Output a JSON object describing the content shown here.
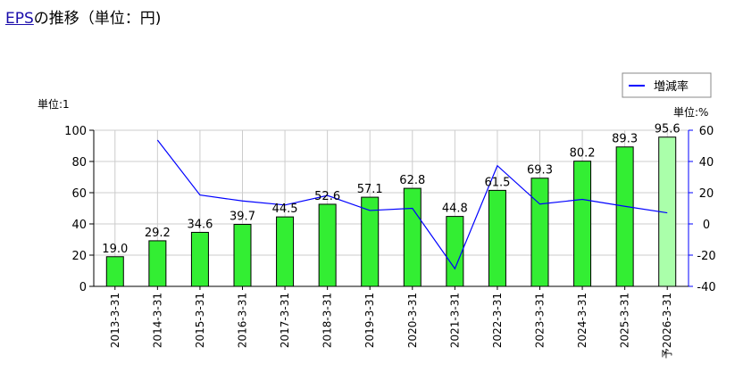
{
  "header": {
    "link_text": "EPS",
    "title_rest": "の推移（単位：円)"
  },
  "colors": {
    "bar": "#33ee33",
    "bar_forecast": "#aaffaa",
    "line": "#0000ff",
    "grid": "#cccccc",
    "link": "#1a0dab"
  },
  "chart_data": {
    "type": "bar",
    "categories": [
      "2013-3-31",
      "2014-3-31",
      "2015-3-31",
      "2016-3-31",
      "2017-3-31",
      "2018-3-31",
      "2019-3-31",
      "2020-3-31",
      "2021-3-31",
      "2022-3-31",
      "2023-3-31",
      "2024-3-31",
      "2025-3-31",
      "予2026-3-31"
    ],
    "series": [
      {
        "values": [
          19.0,
          29.2,
          34.6,
          39.7,
          44.5,
          52.6,
          57.1,
          62.8,
          44.8,
          61.5,
          69.3,
          80.2,
          89.3,
          95.6
        ],
        "labels": [
          "19.0",
          "29.2",
          "34.6",
          "39.7",
          "44.5",
          "52.6",
          "57.1",
          "62.8",
          "44.8",
          "61.5",
          "69.3",
          "80.2",
          "89.3",
          "95.6"
        ],
        "axis": "left",
        "forecast_last": true
      },
      {
        "name": "増減率",
        "type": "line",
        "axis": "right",
        "values": [
          null,
          53.7,
          18.5,
          14.7,
          12.1,
          18.2,
          8.6,
          10.0,
          -28.7,
          37.3,
          12.7,
          15.7,
          11.3,
          7.1
        ]
      }
    ],
    "left_axis": {
      "unit_label": "単位:1",
      "ylim": [
        0,
        100
      ],
      "ticks": [
        "0",
        "20",
        "40",
        "60",
        "80",
        "100"
      ]
    },
    "right_axis": {
      "unit_label": "単位:%",
      "ylim": [
        -40,
        60
      ],
      "ticks": [
        "-40",
        "-20",
        "0",
        "20",
        "40",
        "60"
      ]
    },
    "legend": {
      "entries": [
        "増減率"
      ],
      "position": "top-right"
    },
    "grid": true
  }
}
